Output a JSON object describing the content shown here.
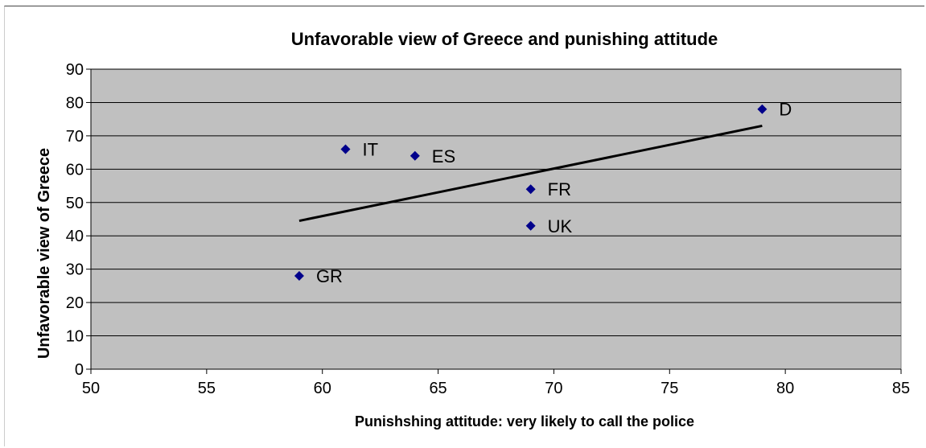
{
  "chart_data": {
    "type": "scatter",
    "title": "Unfavorable view of Greece and punishing attitude",
    "xlabel": "Punishshing attitude: very likely to call the police",
    "ylabel": "Unfavorable view of Greece",
    "xlim": [
      50,
      85
    ],
    "ylim": [
      0,
      90
    ],
    "xticks": [
      50,
      55,
      60,
      65,
      70,
      75,
      80,
      85
    ],
    "yticks": [
      0,
      10,
      20,
      30,
      40,
      50,
      60,
      70,
      80,
      90
    ],
    "grid": "horizontal",
    "plot_background": "#c0c0c0",
    "marker_color": "#00008b",
    "trendline_color": "#000000",
    "points": [
      {
        "label": "GR",
        "x": 59,
        "y": 28
      },
      {
        "label": "IT",
        "x": 61,
        "y": 66
      },
      {
        "label": "ES",
        "x": 64,
        "y": 64
      },
      {
        "label": "FR",
        "x": 69,
        "y": 54
      },
      {
        "label": "UK",
        "x": 69,
        "y": 43
      },
      {
        "label": "D",
        "x": 79,
        "y": 78
      }
    ],
    "trendline": {
      "type": "linear",
      "x": [
        59,
        79
      ],
      "y": [
        44.5,
        73
      ]
    }
  }
}
